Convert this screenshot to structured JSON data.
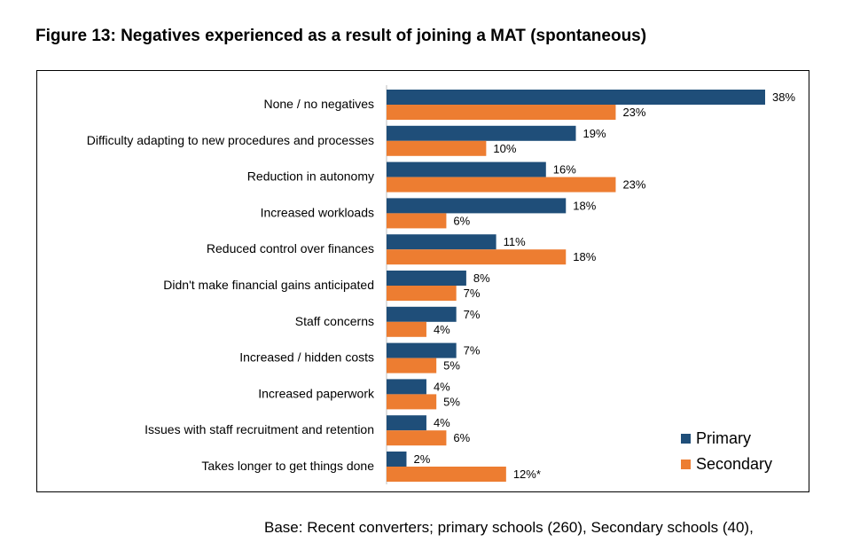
{
  "figure": {
    "title": "Figure 13: Negatives experienced as a result of joining a MAT (spontaneous)",
    "base_note": "Base: Recent converters; primary schools (260), Secondary schools (40),"
  },
  "chart_data": {
    "type": "bar",
    "orientation": "horizontal",
    "categories": [
      "None / no negatives",
      "Difficulty adapting to new procedures and processes",
      "Reduction in autonomy",
      "Increased workloads",
      "Reduced control over finances",
      "Didn't make financial gains anticipated",
      "Staff concerns",
      "Increased / hidden costs",
      "Increased paperwork",
      "Issues with staff recruitment and retention",
      "Takes longer to get things done"
    ],
    "series": [
      {
        "name": "Primary",
        "color": "#1f4e79",
        "values": [
          38,
          19,
          16,
          18,
          11,
          8,
          7,
          7,
          4,
          4,
          2
        ],
        "labels": [
          "38%",
          "19%",
          "16%",
          "18%",
          "11%",
          "8%",
          "7%",
          "7%",
          "4%",
          "4%",
          "2%"
        ]
      },
      {
        "name": "Secondary",
        "color": "#ed7d31",
        "values": [
          23,
          10,
          23,
          6,
          18,
          7,
          4,
          5,
          5,
          6,
          12
        ],
        "labels": [
          "23%",
          "10%",
          "23%",
          "6%",
          "18%",
          "7%",
          "4%",
          "5%",
          "5%",
          "6%",
          "12%*"
        ]
      }
    ],
    "xlim": [
      0,
      38
    ],
    "grid": false,
    "legend_position": "bottom-right"
  }
}
